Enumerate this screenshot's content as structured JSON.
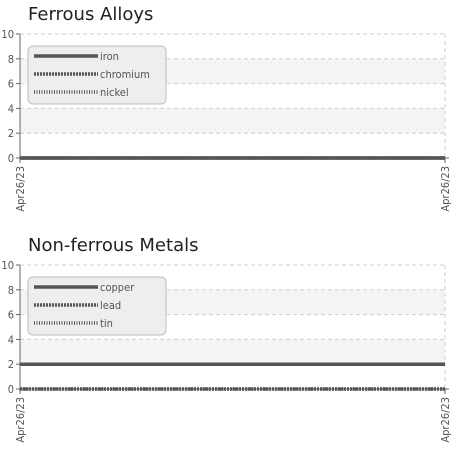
{
  "chart_data": [
    {
      "type": "line",
      "title": "Ferrous Alloys",
      "x": [
        "Apr26/23",
        "Apr26/23"
      ],
      "ylim": [
        0,
        10
      ],
      "yticks": [
        0,
        2,
        4,
        6,
        8,
        10
      ],
      "grid": true,
      "legend_position": "top-left",
      "series": [
        {
          "name": "iron",
          "values": [
            0,
            0
          ],
          "style": "solid"
        },
        {
          "name": "chromium",
          "values": [
            0,
            0
          ],
          "style": "dense-dotted"
        },
        {
          "name": "nickel",
          "values": [
            0,
            0
          ],
          "style": "dotted"
        }
      ]
    },
    {
      "type": "line",
      "title": "Non-ferrous Metals",
      "x": [
        "Apr26/23",
        "Apr26/23"
      ],
      "ylim": [
        0,
        10
      ],
      "yticks": [
        0,
        2,
        4,
        6,
        8,
        10
      ],
      "grid": true,
      "legend_position": "top-left",
      "series": [
        {
          "name": "copper",
          "values": [
            2,
            2
          ],
          "style": "solid"
        },
        {
          "name": "lead",
          "values": [
            0,
            0
          ],
          "style": "dense-dotted"
        },
        {
          "name": "tin",
          "values": [
            0,
            0
          ],
          "style": "dotted"
        }
      ]
    }
  ],
  "colors": {
    "line": "#555555",
    "grid": "#cfcfcf",
    "axis": "#666666",
    "band": "#f4f4f4",
    "legend_bg": "#eeeeee",
    "legend_border": "#bbbbbb",
    "text": "#555555"
  }
}
